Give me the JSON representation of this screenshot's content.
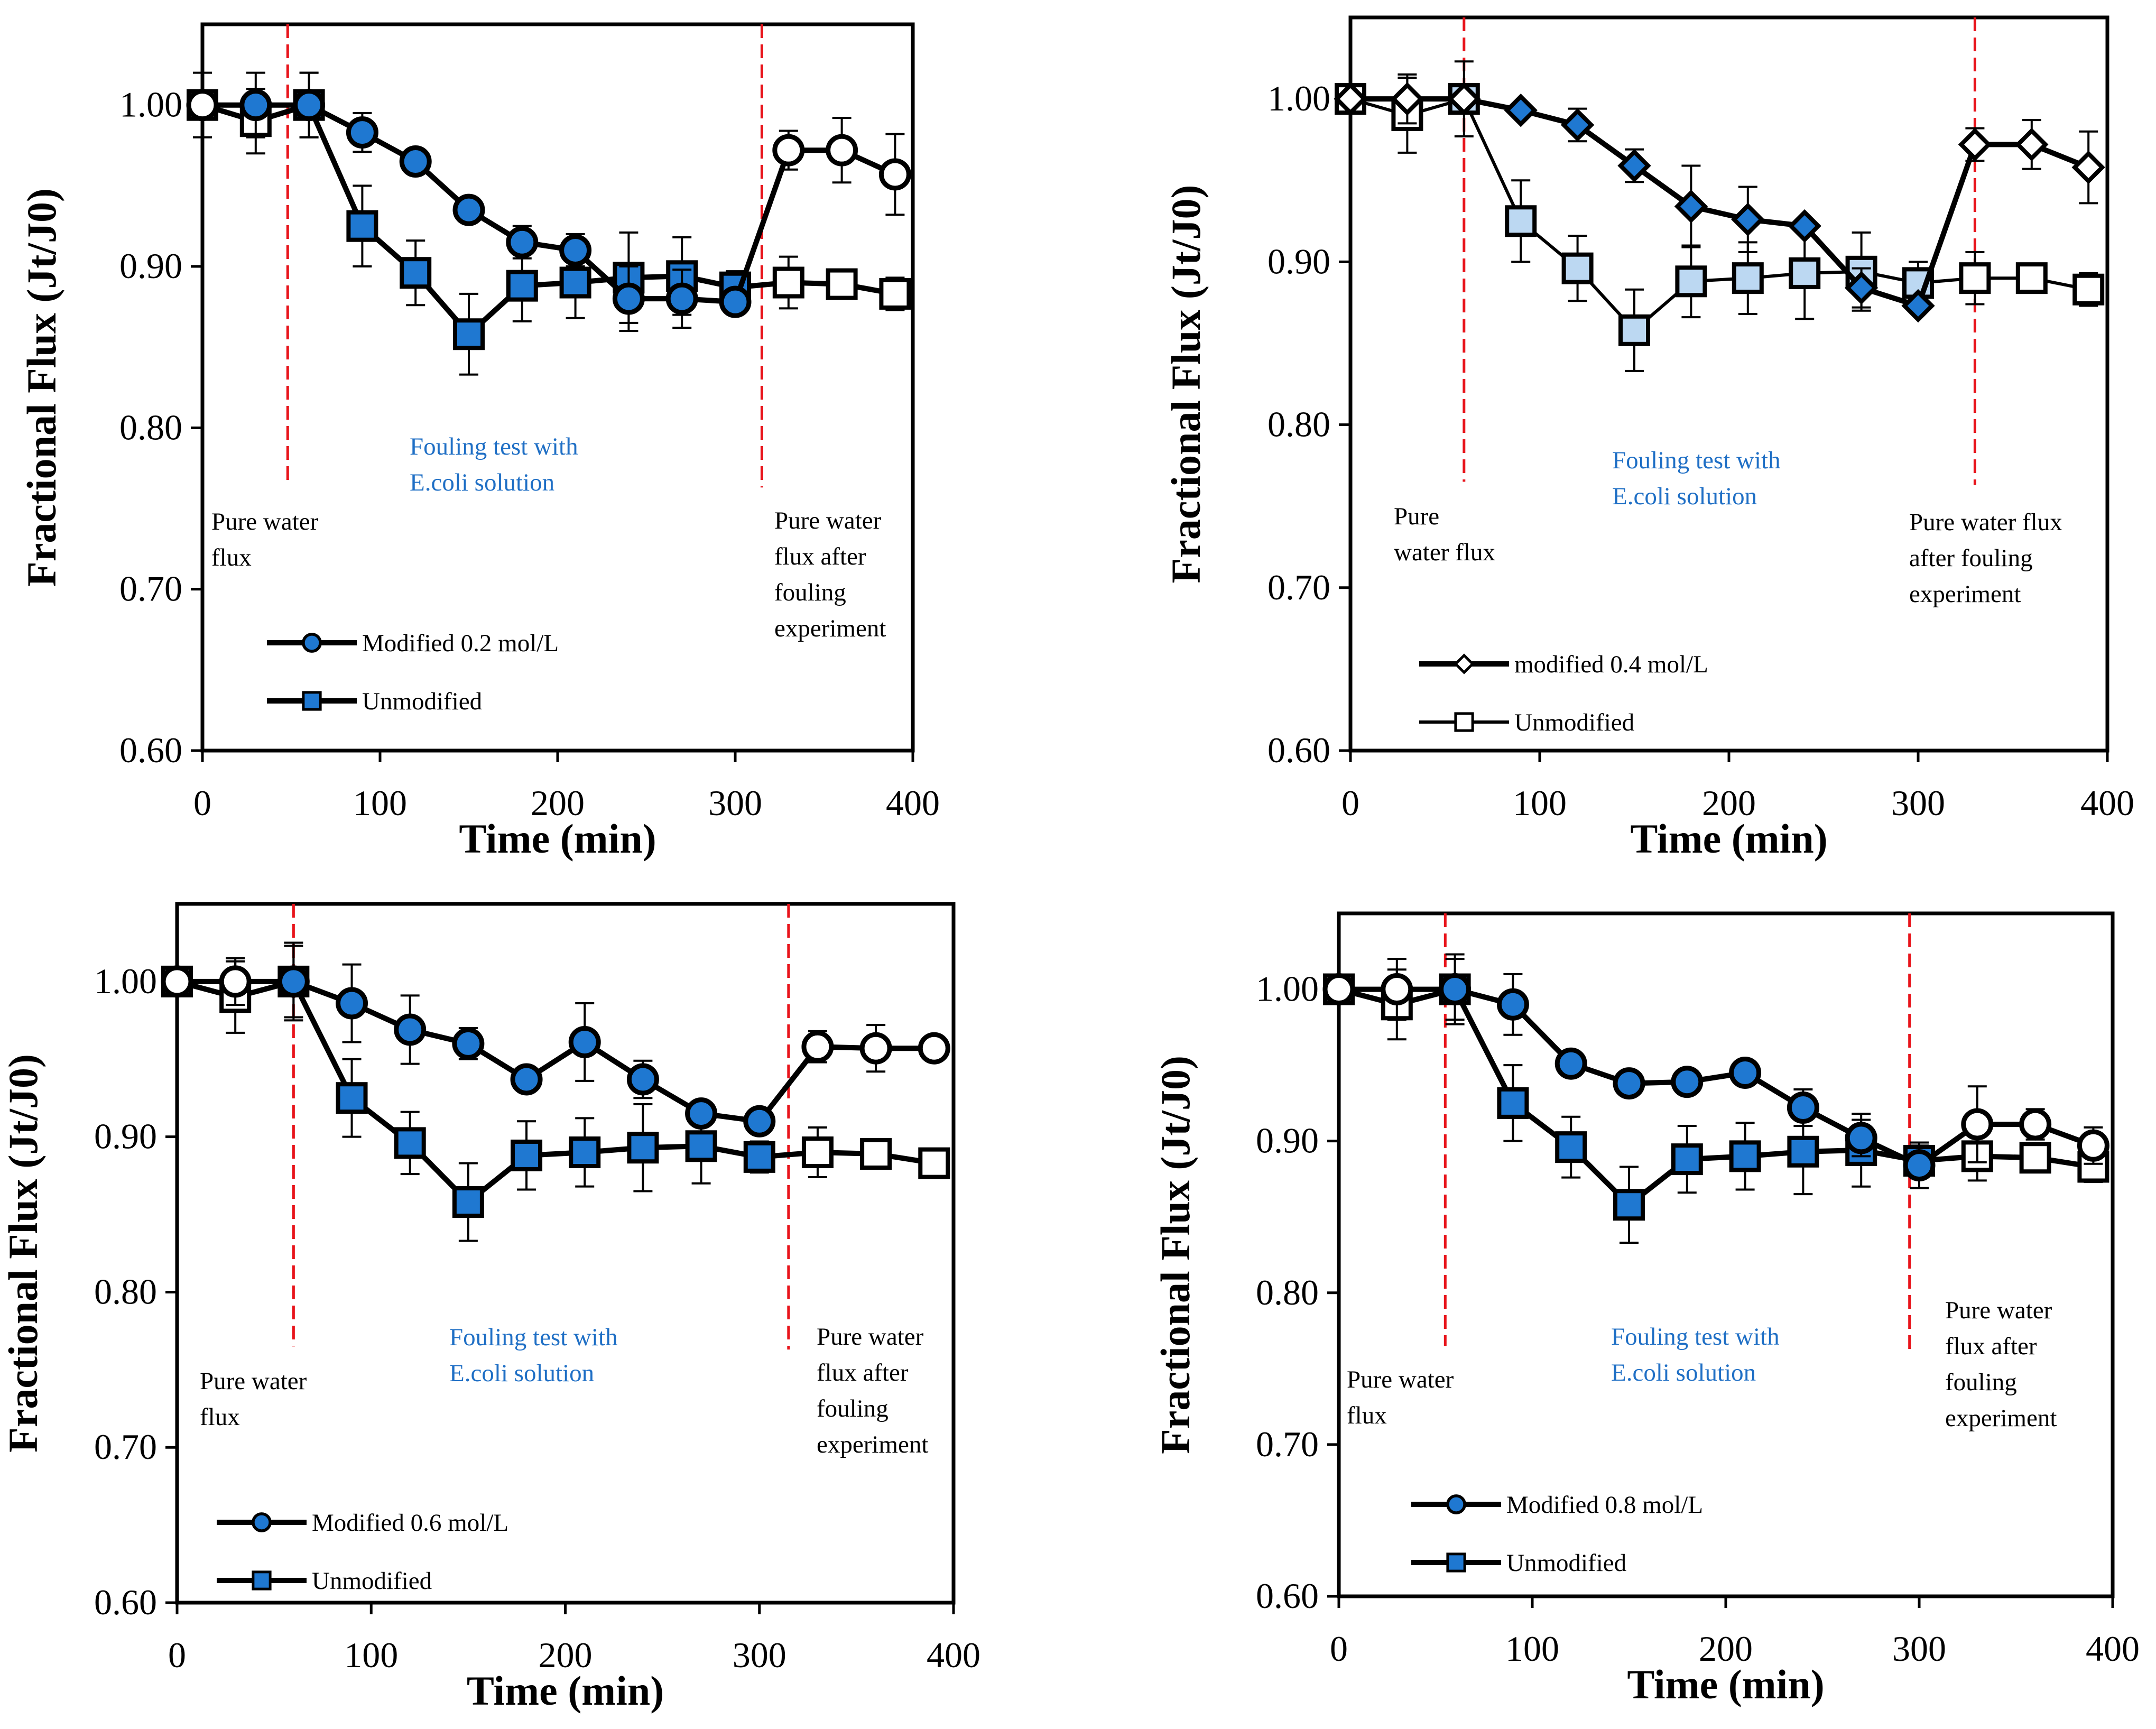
{
  "colors": {
    "filled_marker": "#1f78d1",
    "light_marker": "#bcd8f2",
    "open_marker": "#ffffff",
    "line": "#000000",
    "phase_line": "#e8141b",
    "annotation_blue": "#1f6fc5"
  },
  "chart_data": [
    {
      "type": "line",
      "xlabel": "Time (min)",
      "ylabel": "Fractional Flux (Jt/J0)",
      "xlim": [
        0,
        400
      ],
      "ylim": [
        0.6,
        1.05
      ],
      "xticks": [
        "0",
        "100",
        "200",
        "300",
        "400"
      ],
      "yticks": [
        "0.60",
        "0.70",
        "0.80",
        "0.90",
        "1.00"
      ],
      "phase_lines": [
        48,
        315
      ],
      "annotations": {
        "pure_water": [
          "Pure water",
          "flux"
        ],
        "fouling": [
          "Fouling test with",
          "E.coli solution"
        ],
        "after": [
          "Pure water",
          "flux after",
          "fouling",
          "experiment"
        ]
      },
      "series": [
        {
          "name": "Modified 0.2 mol/L",
          "marker": "circle",
          "x": [
            0,
            30,
            60,
            90,
            120,
            150,
            180,
            210,
            240,
            270,
            300,
            330,
            360,
            390
          ],
          "y": [
            1.0,
            1.0,
            1.0,
            0.983,
            0.965,
            0.935,
            0.915,
            0.91,
            0.88,
            0.88,
            0.878,
            0.972,
            0.972,
            0.957
          ],
          "err": [
            0.02,
            0.02,
            0.02,
            0.012,
            0.0,
            0.0,
            0.01,
            0.01,
            0.02,
            0.018,
            0.0,
            0.012,
            0.02,
            0.025
          ],
          "phase_fill": [
            0,
            1,
            1,
            1,
            1,
            1,
            1,
            1,
            1,
            1,
            1,
            0,
            0,
            0
          ]
        },
        {
          "name": "Unmodified",
          "marker": "square",
          "x": [
            0,
            30,
            60,
            90,
            120,
            150,
            180,
            210,
            240,
            270,
            300,
            330,
            360,
            390
          ],
          "y": [
            1.0,
            0.99,
            1.0,
            0.925,
            0.896,
            0.858,
            0.888,
            0.89,
            0.893,
            0.894,
            0.887,
            0.89,
            0.889,
            0.883
          ],
          "err": [
            0.0,
            0.02,
            0.02,
            0.025,
            0.02,
            0.025,
            0.022,
            0.022,
            0.028,
            0.024,
            0.01,
            0.016,
            0.007,
            0.01
          ],
          "phase_fill": [
            0,
            0,
            1,
            1,
            1,
            1,
            1,
            1,
            1,
            1,
            1,
            0,
            0,
            0
          ]
        }
      ]
    },
    {
      "type": "line",
      "xlabel": "Time (min)",
      "ylabel": "Fractional Flux (Jt/J0)",
      "xlim": [
        0,
        400
      ],
      "ylim": [
        0.6,
        1.05
      ],
      "xticks": [
        "0",
        "100",
        "200",
        "300",
        "400"
      ],
      "yticks": [
        "0.60",
        "0.70",
        "0.80",
        "0.90",
        "1.00"
      ],
      "phase_lines": [
        60,
        330
      ],
      "annotations": {
        "pure_water": [
          "Pure",
          "water flux"
        ],
        "fouling": [
          "Fouling test with",
          "E.coli solution"
        ],
        "after": [
          "Pure water flux",
          "after fouling",
          "experiment"
        ]
      },
      "series": [
        {
          "name": "modified 0.4 mol/L",
          "marker": "diamond",
          "x": [
            0,
            30,
            60,
            90,
            120,
            150,
            180,
            210,
            240,
            270,
            300,
            330,
            360,
            390
          ],
          "y": [
            1.0,
            1.0,
            1.0,
            0.993,
            0.984,
            0.959,
            0.934,
            0.926,
            0.922,
            0.884,
            0.873,
            0.972,
            0.972,
            0.958
          ],
          "err": [
            0.0,
            0.015,
            0.0,
            0.0,
            0.01,
            0.01,
            0.025,
            0.02,
            0.0,
            0.012,
            0.0,
            0.01,
            0.015,
            0.022
          ],
          "phase_fill": [
            0,
            0,
            0,
            1,
            1,
            1,
            1,
            1,
            1,
            1,
            1,
            0,
            0,
            0
          ]
        },
        {
          "name": "Unmodified",
          "marker": "square-light",
          "x": [
            0,
            30,
            60,
            90,
            120,
            150,
            180,
            210,
            240,
            270,
            300,
            330,
            360,
            390
          ],
          "y": [
            1.0,
            0.99,
            1.0,
            0.925,
            0.896,
            0.858,
            0.888,
            0.89,
            0.893,
            0.894,
            0.887,
            0.89,
            0.89,
            0.883
          ],
          "err": [
            0.0,
            0.023,
            0.023,
            0.025,
            0.02,
            0.025,
            0.022,
            0.022,
            0.028,
            0.024,
            0.013,
            0.016,
            0.005,
            0.01
          ],
          "phase_fill": [
            0,
            0,
            1,
            1,
            1,
            1,
            1,
            1,
            1,
            1,
            1,
            0,
            0,
            0
          ]
        }
      ]
    },
    {
      "type": "line",
      "xlabel": "Time (min)",
      "ylabel": "Fractional Flux (Jt/J0)",
      "xlim": [
        0,
        400
      ],
      "ylim": [
        0.6,
        1.05
      ],
      "xticks": [
        "0",
        "100",
        "200",
        "300",
        "400"
      ],
      "yticks": [
        "0.60",
        "0.70",
        "0.80",
        "0.90",
        "1.00"
      ],
      "phase_lines": [
        60,
        315
      ],
      "annotations": {
        "pure_water": [
          "Pure water",
          "flux"
        ],
        "fouling": [
          "Fouling test with",
          "E.coli solution"
        ],
        "after": [
          "Pure water",
          "flux after",
          "fouling",
          "experiment"
        ]
      },
      "series": [
        {
          "name": "Modified 0.6 mol/L",
          "marker": "circle",
          "x": [
            0,
            30,
            60,
            90,
            120,
            150,
            180,
            210,
            240,
            270,
            300,
            330,
            360,
            390
          ],
          "y": [
            1.0,
            1.0,
            1.0,
            0.986,
            0.969,
            0.96,
            0.937,
            0.961,
            0.937,
            0.915,
            0.91,
            0.958,
            0.957,
            0.957
          ],
          "err": [
            0.0,
            0.015,
            0.025,
            0.025,
            0.022,
            0.01,
            0.0,
            0.025,
            0.012,
            0.0,
            0.0,
            0.01,
            0.015,
            0.0
          ],
          "phase_fill": [
            0,
            0,
            1,
            1,
            1,
            1,
            1,
            1,
            1,
            1,
            1,
            0,
            0,
            0
          ]
        },
        {
          "name": "Unmodified",
          "marker": "square",
          "x": [
            0,
            30,
            60,
            90,
            120,
            150,
            180,
            210,
            240,
            270,
            300,
            330,
            360,
            390
          ],
          "y": [
            1.0,
            0.99,
            1.0,
            0.925,
            0.896,
            0.858,
            0.888,
            0.89,
            0.893,
            0.894,
            0.887,
            0.89,
            0.889,
            0.883
          ],
          "err": [
            0.0,
            0.023,
            0.023,
            0.025,
            0.02,
            0.025,
            0.022,
            0.022,
            0.028,
            0.024,
            0.01,
            0.016,
            0.007,
            0.0
          ],
          "phase_fill": [
            0,
            0,
            1,
            1,
            1,
            1,
            1,
            1,
            1,
            1,
            1,
            0,
            0,
            0
          ]
        }
      ]
    },
    {
      "type": "line",
      "xlabel": "Time (min)",
      "ylabel": "Fractional Flux (Jt/J0)",
      "xlim": [
        0,
        400
      ],
      "ylim": [
        0.6,
        1.05
      ],
      "xticks": [
        "0",
        "100",
        "200",
        "300",
        "400"
      ],
      "yticks": [
        "0.60",
        "0.70",
        "0.80",
        "0.90",
        "1.00"
      ],
      "phase_lines": [
        55,
        295
      ],
      "annotations": {
        "pure_water": [
          "Pure water",
          "flux"
        ],
        "fouling": [
          "Fouling test with",
          "E.coli solution"
        ],
        "after": [
          "Pure water",
          "flux after",
          "fouling",
          "experiment"
        ]
      },
      "series": [
        {
          "name": "Modified 0.8 mol/L",
          "marker": "circle",
          "x": [
            0,
            30,
            60,
            90,
            120,
            150,
            180,
            210,
            240,
            270,
            300,
            330,
            360,
            390
          ],
          "y": [
            1.0,
            1.0,
            1.0,
            0.99,
            0.951,
            0.938,
            0.939,
            0.945,
            0.922,
            0.902,
            0.884,
            0.911,
            0.911,
            0.897
          ],
          "err": [
            0.0,
            0.02,
            0.02,
            0.02,
            0.0,
            0.0,
            0.0,
            0.0,
            0.012,
            0.012,
            0.015,
            0.025,
            0.01,
            0.012
          ],
          "phase_fill": [
            0,
            0,
            1,
            1,
            1,
            1,
            1,
            1,
            1,
            1,
            1,
            0,
            0,
            0
          ]
        },
        {
          "name": "Unmodified",
          "marker": "square",
          "x": [
            0,
            30,
            60,
            90,
            120,
            150,
            180,
            210,
            240,
            270,
            300,
            330,
            360,
            390
          ],
          "y": [
            1.0,
            0.99,
            1.0,
            0.925,
            0.896,
            0.858,
            0.888,
            0.89,
            0.893,
            0.894,
            0.887,
            0.89,
            0.889,
            0.883
          ],
          "err": [
            0.0,
            0.023,
            0.023,
            0.025,
            0.02,
            0.025,
            0.022,
            0.022,
            0.028,
            0.024,
            0.01,
            0.016,
            0.007,
            0.01
          ],
          "phase_fill": [
            0,
            0,
            1,
            1,
            1,
            1,
            1,
            1,
            1,
            1,
            1,
            0,
            0,
            0
          ]
        }
      ]
    }
  ]
}
